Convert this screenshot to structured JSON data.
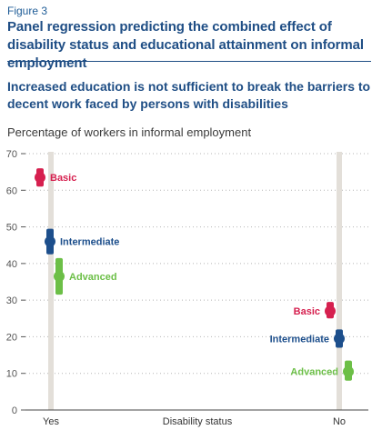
{
  "figure_label": "Figure 3",
  "title": "Panel regression predicting the combined effect of disability status and educational attainment on informal employment",
  "subtitle": "Increased education is not sufficient to break the barriers to decent work faced by persons with disabilities",
  "colors": {
    "Basic": "#d6204f",
    "Intermediate": "#1d4f8c",
    "Advanced": "#6cbf47",
    "band": "#e3dfd9"
  },
  "chart_data": {
    "type": "scatter",
    "ylabel": "Percentage of workers in informal employment",
    "xlabel": "Disability status",
    "categories": [
      "Yes",
      "No"
    ],
    "ylim": [
      0,
      70
    ],
    "yticks": [
      0,
      10,
      20,
      30,
      40,
      50,
      60,
      70
    ],
    "grid": "horizontal dotted",
    "series": [
      {
        "name": "Basic",
        "points": [
          {
            "x": "Yes",
            "y": 63.5,
            "low": 61,
            "high": 66
          },
          {
            "x": "No",
            "y": 27,
            "low": 25,
            "high": 29.5
          }
        ]
      },
      {
        "name": "Intermediate",
        "points": [
          {
            "x": "Yes",
            "y": 46,
            "low": 42.5,
            "high": 49.5
          },
          {
            "x": "No",
            "y": 19.5,
            "low": 17,
            "high": 22
          }
        ]
      },
      {
        "name": "Advanced",
        "points": [
          {
            "x": "Yes",
            "y": 36.5,
            "low": 31.5,
            "high": 41.5
          },
          {
            "x": "No",
            "y": 10.5,
            "low": 8,
            "high": 13.5
          }
        ]
      }
    ]
  }
}
